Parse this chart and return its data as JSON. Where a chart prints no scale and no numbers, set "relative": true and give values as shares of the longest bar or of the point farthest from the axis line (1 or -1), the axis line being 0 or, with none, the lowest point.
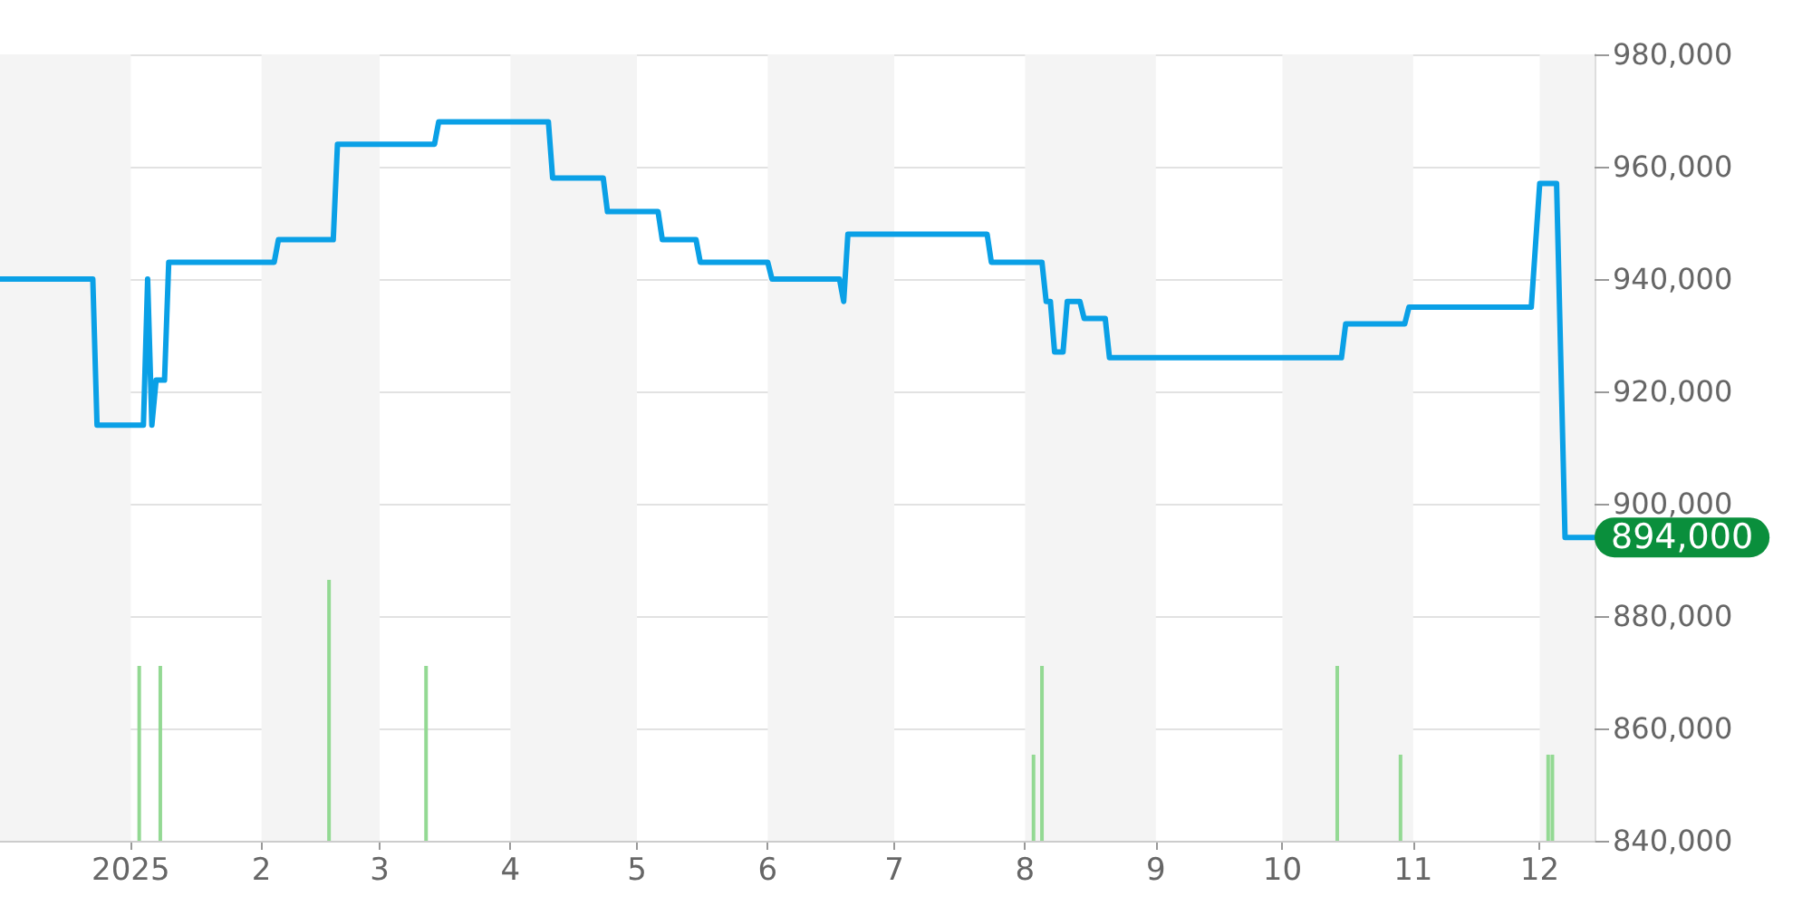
{
  "chart_data": [
    {
      "type": "line",
      "x": [
        "2024-12-01",
        "2024-12-23",
        "2024-12-24",
        "2025-01-04",
        "2025-01-05",
        "2025-01-06",
        "2025-01-07",
        "2025-01-09",
        "2025-01-10",
        "2025-02-04",
        "2025-02-05",
        "2025-02-18",
        "2025-02-19",
        "2025-03-14",
        "2025-03-15",
        "2025-04-10",
        "2025-04-11",
        "2025-04-23",
        "2025-04-24",
        "2025-05-06",
        "2025-05-07",
        "2025-05-15",
        "2025-05-16",
        "2025-06-01",
        "2025-06-02",
        "2025-06-18",
        "2025-06-19",
        "2025-06-20",
        "2025-07-23",
        "2025-07-24",
        "2025-08-05",
        "2025-08-06",
        "2025-08-07",
        "2025-08-08",
        "2025-08-10",
        "2025-08-11",
        "2025-08-14",
        "2025-08-15",
        "2025-08-20",
        "2025-08-21",
        "2025-10-15",
        "2025-10-16",
        "2025-10-30",
        "2025-10-31",
        "2025-11-29",
        "2025-12-01",
        "2025-12-05",
        "2025-12-07",
        "2025-12-14"
      ],
      "series": [
        {
          "color": "#0aa0e6",
          "values": [
            940000,
            940000,
            914000,
            914000,
            940000,
            914000,
            922000,
            922000,
            943000,
            943000,
            947000,
            947000,
            964000,
            964000,
            968000,
            968000,
            958000,
            958000,
            952000,
            952000,
            947000,
            947000,
            943000,
            943000,
            940000,
            940000,
            936000,
            948000,
            948000,
            943000,
            943000,
            936000,
            936000,
            927000,
            927000,
            936000,
            936000,
            933000,
            933000,
            926000,
            926000,
            932000,
            932000,
            935000,
            935000,
            957000,
            957000,
            894000,
            894000
          ]
        }
      ],
      "xlim": [
        "2024-12-01",
        "2025-12-14"
      ],
      "xticks": [
        {
          "value": "2025-01-01",
          "label": "2025"
        },
        {
          "value": "2025-02-01",
          "label": "2"
        },
        {
          "value": "2025-03-01",
          "label": "3"
        },
        {
          "value": "2025-04-01",
          "label": "4"
        },
        {
          "value": "2025-05-01",
          "label": "5"
        },
        {
          "value": "2025-06-01",
          "label": "6"
        },
        {
          "value": "2025-07-01",
          "label": "7"
        },
        {
          "value": "2025-08-01",
          "label": "8"
        },
        {
          "value": "2025-09-01",
          "label": "9"
        },
        {
          "value": "2025-10-01",
          "label": "10"
        },
        {
          "value": "2025-11-01",
          "label": "11"
        },
        {
          "value": "2025-12-01",
          "label": "12"
        }
      ],
      "ylim": [
        840000,
        980000
      ],
      "yticks": [
        {
          "value": 840000,
          "label": "840,000"
        },
        {
          "value": 860000,
          "label": "860,000"
        },
        {
          "value": 880000,
          "label": "880,000"
        },
        {
          "value": 900000,
          "label": "900,000"
        },
        {
          "value": 920000,
          "label": "920,000"
        },
        {
          "value": 940000,
          "label": "940,000"
        },
        {
          "value": 960000,
          "label": "960,000"
        },
        {
          "value": 980000,
          "label": "980,000"
        }
      ],
      "grid": "y",
      "marker": "none",
      "line_style": "solid",
      "bands": [
        {
          "axis": "x",
          "from": "2024-12-01",
          "to": "2025-01-01",
          "color": "#f4f4f4"
        },
        {
          "axis": "x",
          "from": "2025-02-01",
          "to": "2025-03-01",
          "color": "#f4f4f4"
        },
        {
          "axis": "x",
          "from": "2025-04-01",
          "to": "2025-05-01",
          "color": "#f4f4f4"
        },
        {
          "axis": "x",
          "from": "2025-06-01",
          "to": "2025-07-01",
          "color": "#f4f4f4"
        },
        {
          "axis": "x",
          "from": "2025-08-01",
          "to": "2025-09-01",
          "color": "#f4f4f4"
        },
        {
          "axis": "x",
          "from": "2025-10-01",
          "to": "2025-11-01",
          "color": "#f4f4f4"
        },
        {
          "axis": "x",
          "from": "2025-12-01",
          "to": "2025-12-14",
          "color": "#f4f4f4"
        }
      ],
      "annotations": [
        {
          "text": "894,000",
          "x": "2025-12-14",
          "y": 894000
        }
      ]
    },
    {
      "type": "bar",
      "relative": true,
      "x": [
        "2025-01-03",
        "2025-01-08",
        "2025-02-17",
        "2025-03-12",
        "2025-08-03",
        "2025-08-05",
        "2025-10-14",
        "2025-10-29",
        "2025-12-03",
        "2025-12-04"
      ],
      "xlim": [
        "2024-12-01",
        "2025-12-14"
      ],
      "series": [
        {
          "color": "#93d993",
          "values": [
            0.67,
            0.67,
            1,
            0.67,
            0.33,
            0.67,
            0.67,
            0.33,
            0.33,
            0.33
          ]
        }
      ]
    }
  ]
}
